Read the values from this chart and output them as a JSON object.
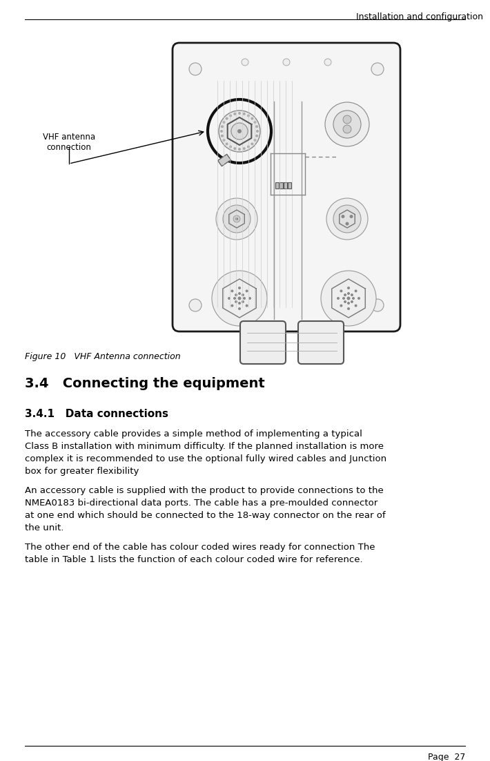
{
  "header_text": "Installation and configuration",
  "figure_caption": "Figure 10   VHF Antenna connection",
  "section_heading": "3.4   Connecting the equipment",
  "subsection_heading": "3.4.1   Data connections",
  "paragraph1_lines": [
    "The accessory cable provides a simple method of implementing a typical",
    "Class B installation with minimum difficulty. If the planned installation is more",
    "complex it is recommended to use the optional fully wired cables and Junction",
    "box for greater flexibility"
  ],
  "paragraph2_lines": [
    "An accessory cable is supplied with the product to provide connections to the",
    "NMEA0183 bi-directional data ports. The cable has a pre-moulded connector",
    "at one end which should be connected to the 18-way connector on the rear of",
    "the unit."
  ],
  "paragraph3_lines": [
    "The other end of the cable has colour coded wires ready for connection The",
    "table in Table 1 lists the function of each colour coded wire for reference."
  ],
  "footer_text": "Page  27",
  "label_text": "VHF antenna\nconnection",
  "bg_color": "#ffffff",
  "text_color": "#000000",
  "line_color": "#000000"
}
